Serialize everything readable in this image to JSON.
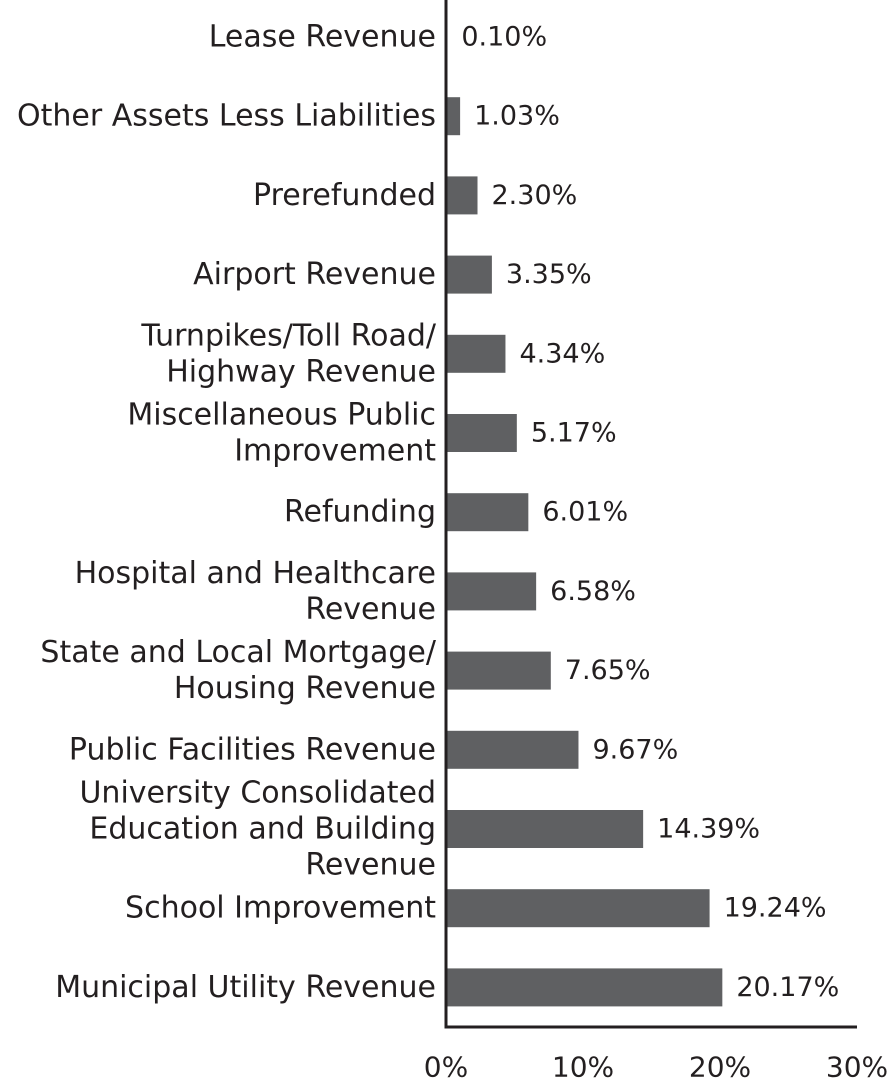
{
  "chart_data": {
    "type": "bar",
    "orientation": "horizontal",
    "categories": [
      [
        "Lease Revenue"
      ],
      [
        "Other Assets Less Liabilities"
      ],
      [
        "Prerefunded"
      ],
      [
        "Airport Revenue"
      ],
      [
        "Turnpikes/Toll Road/",
        "Highway Revenue"
      ],
      [
        "Miscellaneous Public",
        "Improvement"
      ],
      [
        "Refunding"
      ],
      [
        "Hospital and Healthcare",
        "Revenue"
      ],
      [
        "State and Local Mortgage/",
        "Housing Revenue"
      ],
      [
        "Public Facilities Revenue"
      ],
      [
        "University Consolidated",
        "Education and Building",
        "Revenue"
      ],
      [
        "School Improvement"
      ],
      [
        "Municipal Utility Revenue"
      ]
    ],
    "values": [
      0.1,
      1.03,
      2.3,
      3.35,
      4.34,
      5.17,
      6.01,
      6.58,
      7.65,
      9.67,
      14.39,
      19.24,
      20.17
    ],
    "value_labels": [
      "0.10%",
      "1.03%",
      "2.30%",
      "3.35%",
      "4.34%",
      "5.17%",
      "6.01%",
      "6.58%",
      "7.65%",
      "9.67%",
      "14.39%",
      "19.24%",
      "20.17%"
    ],
    "xlim": [
      0,
      30
    ],
    "xticks": [
      0,
      10,
      20,
      30
    ],
    "xtick_labels": [
      "0%",
      "10%",
      "20%",
      "30%"
    ],
    "title": "",
    "xlabel": "",
    "ylabel": "",
    "grid": false,
    "colors": {
      "bar": "#5f6062",
      "text": "#231f20",
      "axis": "#231f20"
    }
  }
}
